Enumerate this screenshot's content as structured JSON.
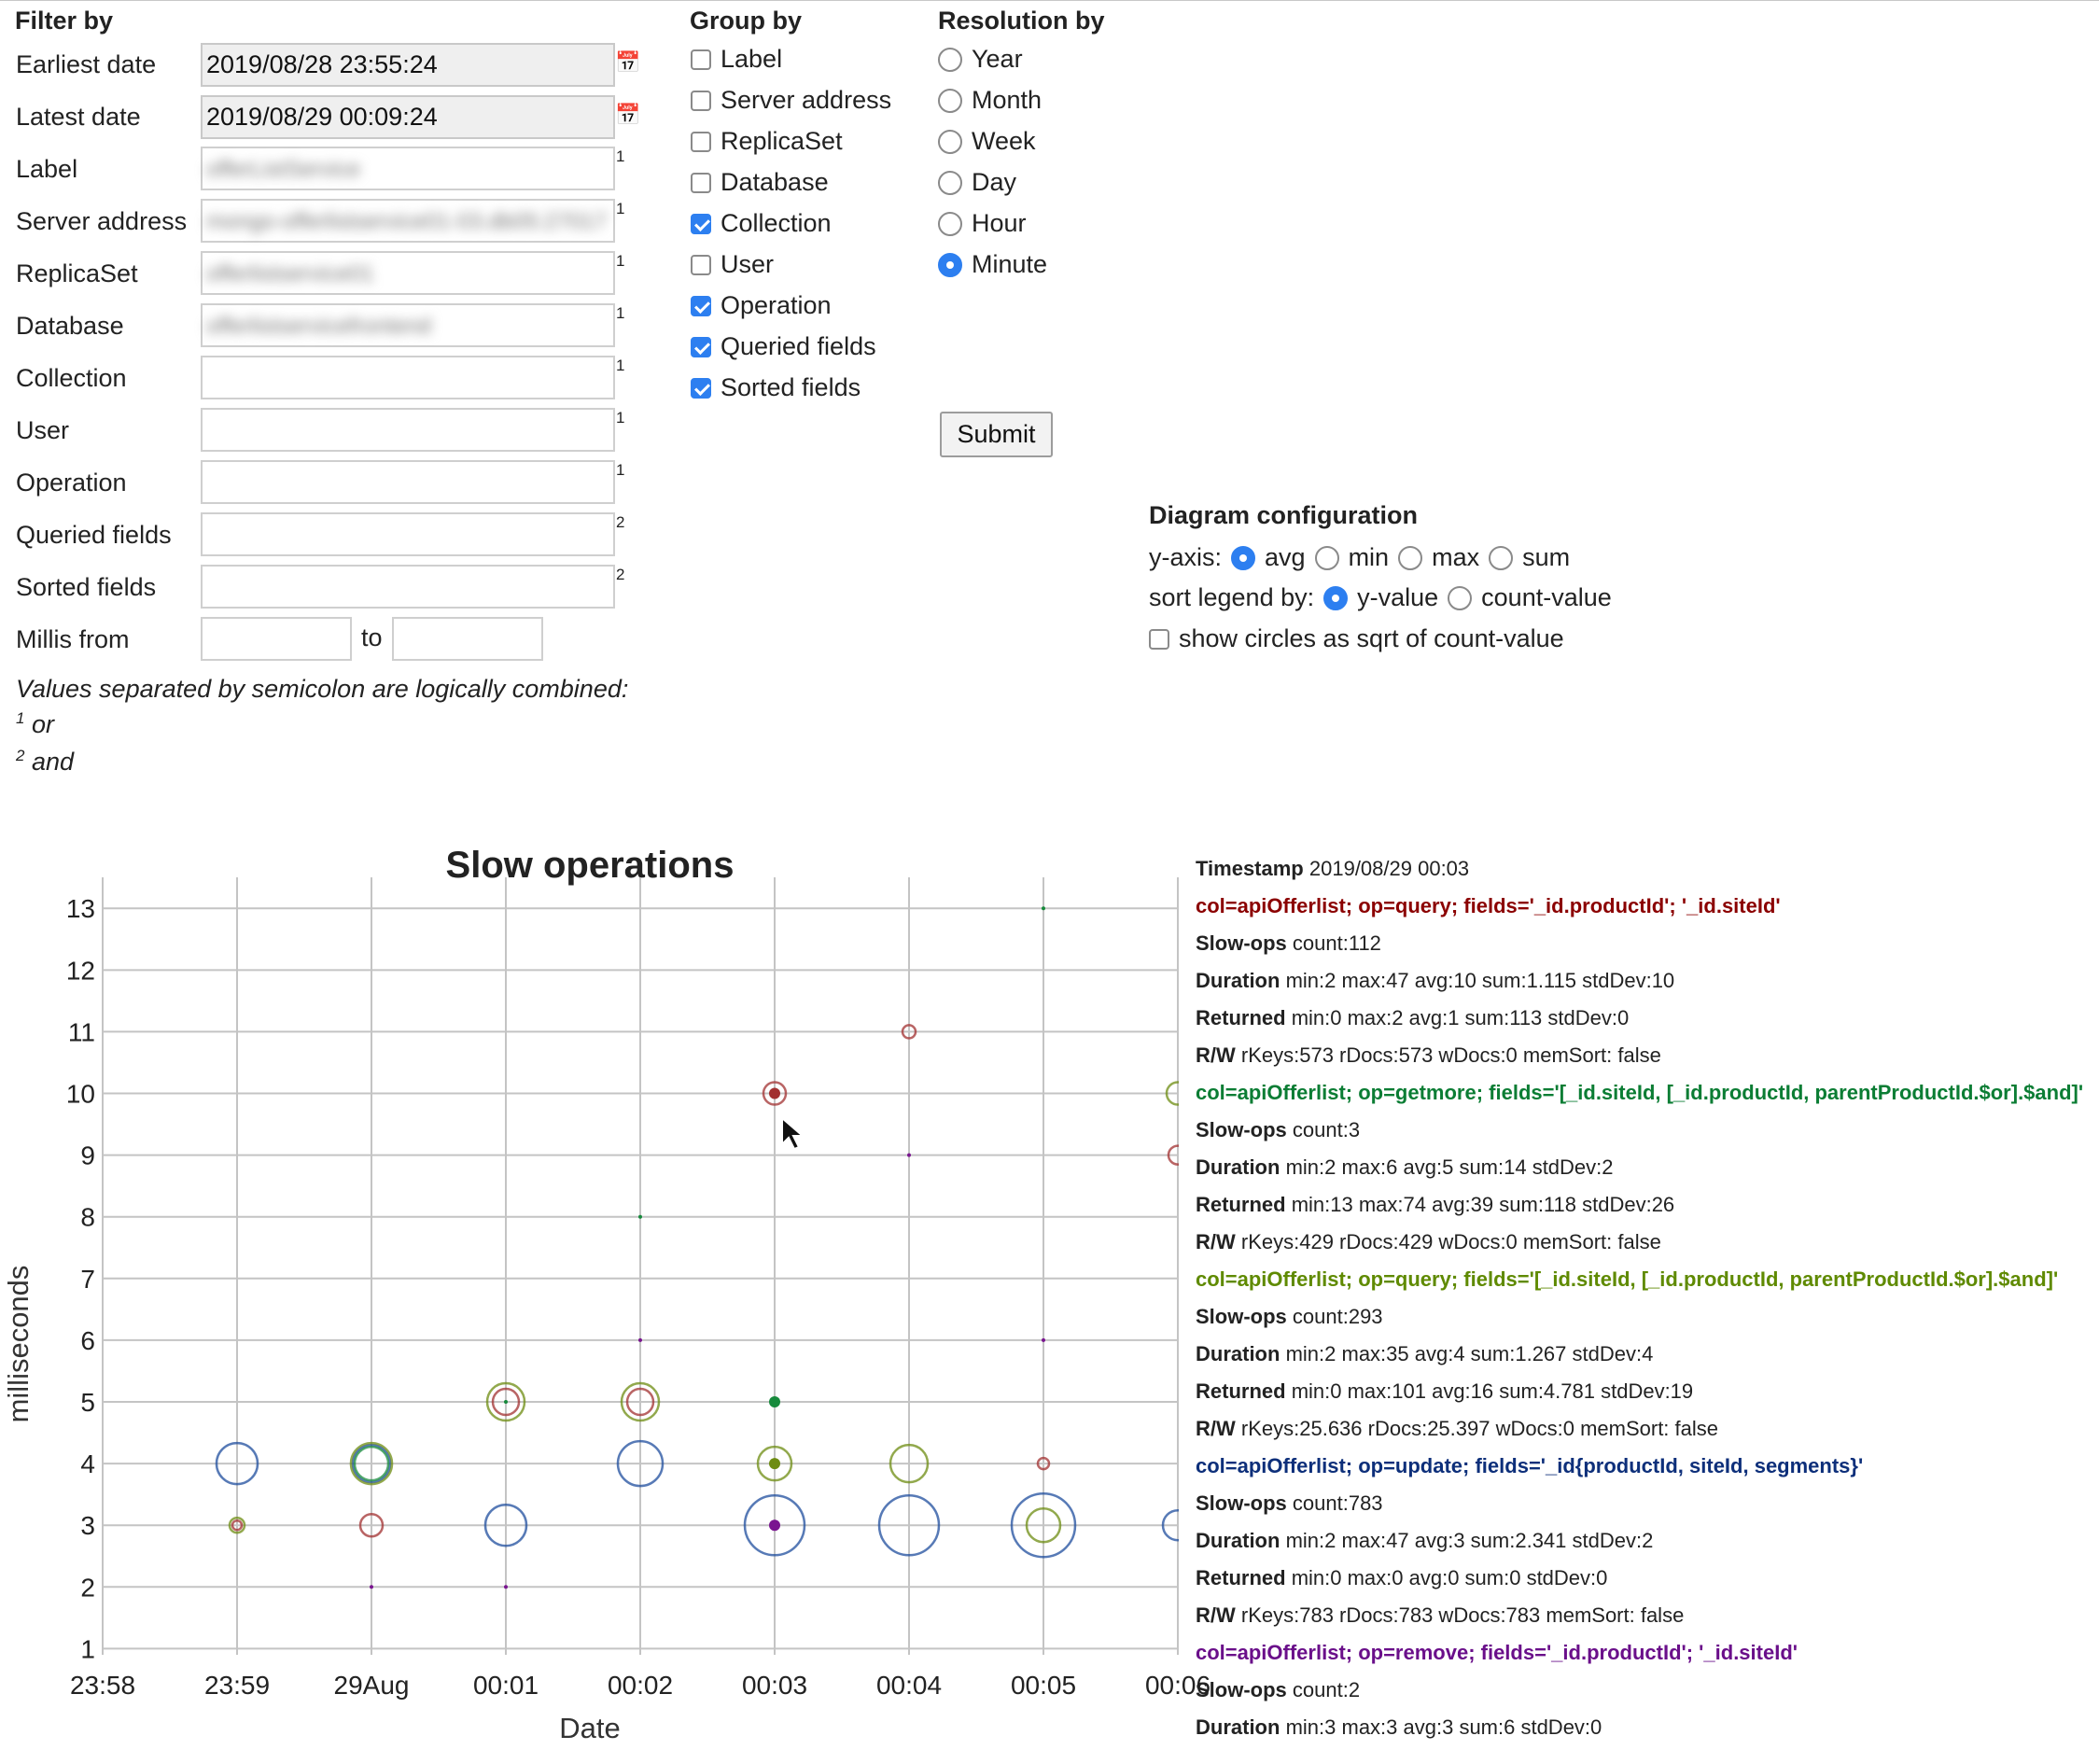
{
  "filter": {
    "title": "Filter by",
    "earliest_label": "Earliest date",
    "earliest_value": "2019/08/28 23:55:24",
    "latest_label": "Latest date",
    "latest_value": "2019/08/29 00:09:24",
    "calendar_icon": "calendar-icon",
    "fields": [
      {
        "label": "Label",
        "value": "offerListService",
        "sup": "1"
      },
      {
        "label": "Server address",
        "value": "mongo-offerlistservice01-03.db05:27017",
        "sup": "1"
      },
      {
        "label": "ReplicaSet",
        "value": "offerlistservice01",
        "sup": "1"
      },
      {
        "label": "Database",
        "value": "offerlistservicefrontend",
        "sup": "1"
      },
      {
        "label": "Collection",
        "value": "",
        "sup": "1"
      },
      {
        "label": "User",
        "value": "",
        "sup": "1"
      },
      {
        "label": "Operation",
        "value": "",
        "sup": "1"
      },
      {
        "label": "Queried fields",
        "value": "",
        "sup": "2"
      },
      {
        "label": "Sorted fields",
        "value": "",
        "sup": "2"
      }
    ],
    "millis_label": "Millis from",
    "millis_to": "to",
    "note": "Values separated by semicolon are logically combined:",
    "note_or_sup": "1",
    "note_or": "or",
    "note_and_sup": "2",
    "note_and": "and"
  },
  "group": {
    "title": "Group by",
    "items": [
      {
        "label": "Label",
        "checked": false
      },
      {
        "label": "Server address",
        "checked": false
      },
      {
        "label": "ReplicaSet",
        "checked": false
      },
      {
        "label": "Database",
        "checked": false
      },
      {
        "label": "Collection",
        "checked": true
      },
      {
        "label": "User",
        "checked": false
      },
      {
        "label": "Operation",
        "checked": true
      },
      {
        "label": "Queried fields",
        "checked": true
      },
      {
        "label": "Sorted fields",
        "checked": true
      }
    ]
  },
  "resolution": {
    "title": "Resolution by",
    "items": [
      {
        "label": "Year",
        "selected": false
      },
      {
        "label": "Month",
        "selected": false
      },
      {
        "label": "Week",
        "selected": false
      },
      {
        "label": "Day",
        "selected": false
      },
      {
        "label": "Hour",
        "selected": false
      },
      {
        "label": "Minute",
        "selected": true
      }
    ],
    "submit": "Submit"
  },
  "diagram": {
    "title": "Diagram configuration",
    "yaxis_label": "y-axis:",
    "yaxis_options": [
      "avg",
      "min",
      "max",
      "sum"
    ],
    "yaxis_selected": "avg",
    "sort_label": "sort legend by:",
    "sort_options": [
      "y-value",
      "count-value"
    ],
    "sort_selected": "y-value",
    "sqrt_label": "show circles as sqrt of count-value",
    "sqrt_checked": false
  },
  "chart_data": {
    "type": "scatter",
    "title": "Slow operations",
    "xlabel": "Date",
    "ylabel": "milliseconds",
    "x_ticks": [
      "23:58",
      "23:59",
      "29Aug",
      "00:01",
      "00:02",
      "00:03",
      "00:04",
      "00:05",
      "00:06"
    ],
    "y_ticks": [
      1,
      2,
      3,
      4,
      5,
      6,
      7,
      8,
      9,
      10,
      11,
      12,
      13
    ],
    "ylim": [
      0.9,
      13.2
    ],
    "grid": true,
    "colors": {
      "red": "#a23030",
      "green": "#178a3c",
      "olive": "#6e8c12",
      "blue": "#1f4e9e",
      "purple": "#7a1590"
    },
    "points": [
      {
        "x": "23:59",
        "y": 4,
        "color": "blue",
        "size": 22,
        "filled": false
      },
      {
        "x": "23:59",
        "y": 3,
        "color": "olive",
        "size": 8,
        "filled": false
      },
      {
        "x": "23:59",
        "y": 3,
        "color": "red",
        "size": 5,
        "filled": false
      },
      {
        "x": "29Aug",
        "y": 4,
        "color": "blue",
        "size": 20,
        "filled": false
      },
      {
        "x": "29Aug",
        "y": 4,
        "color": "olive",
        "size": 22,
        "filled": false
      },
      {
        "x": "29Aug",
        "y": 4,
        "color": "green",
        "size": 18,
        "filled": false
      },
      {
        "x": "29Aug",
        "y": 3,
        "color": "red",
        "size": 12,
        "filled": false
      },
      {
        "x": "29Aug",
        "y": 2,
        "color": "purple",
        "size": 2,
        "filled": true
      },
      {
        "x": "00:01",
        "y": 5,
        "color": "olive",
        "size": 20,
        "filled": false
      },
      {
        "x": "00:01",
        "y": 5,
        "color": "red",
        "size": 14,
        "filled": false
      },
      {
        "x": "00:01",
        "y": 5,
        "color": "green",
        "size": 2,
        "filled": true
      },
      {
        "x": "00:01",
        "y": 3,
        "color": "blue",
        "size": 22,
        "filled": false
      },
      {
        "x": "00:01",
        "y": 2,
        "color": "purple",
        "size": 2,
        "filled": true
      },
      {
        "x": "00:02",
        "y": 8,
        "color": "green",
        "size": 2,
        "filled": true
      },
      {
        "x": "00:02",
        "y": 6,
        "color": "purple",
        "size": 2,
        "filled": true
      },
      {
        "x": "00:02",
        "y": 5,
        "color": "olive",
        "size": 20,
        "filled": false
      },
      {
        "x": "00:02",
        "y": 5,
        "color": "red",
        "size": 14,
        "filled": false
      },
      {
        "x": "00:02",
        "y": 4,
        "color": "blue",
        "size": 24,
        "filled": false
      },
      {
        "x": "00:03",
        "y": 10,
        "color": "red",
        "size": 12,
        "filled": false
      },
      {
        "x": "00:03",
        "y": 10,
        "color": "red",
        "size": 6,
        "filled": true
      },
      {
        "x": "00:03",
        "y": 5,
        "color": "green",
        "size": 6,
        "filled": true
      },
      {
        "x": "00:03",
        "y": 4,
        "color": "olive",
        "size": 18,
        "filled": false
      },
      {
        "x": "00:03",
        "y": 4,
        "color": "olive",
        "size": 6,
        "filled": true
      },
      {
        "x": "00:03",
        "y": 3,
        "color": "blue",
        "size": 32,
        "filled": false
      },
      {
        "x": "00:03",
        "y": 3,
        "color": "purple",
        "size": 6,
        "filled": true
      },
      {
        "x": "00:04",
        "y": 11,
        "color": "red",
        "size": 7,
        "filled": false
      },
      {
        "x": "00:04",
        "y": 9,
        "color": "purple",
        "size": 2,
        "filled": true
      },
      {
        "x": "00:04",
        "y": 4,
        "color": "olive",
        "size": 20,
        "filled": false
      },
      {
        "x": "00:04",
        "y": 3,
        "color": "blue",
        "size": 32,
        "filled": false
      },
      {
        "x": "00:05",
        "y": 13,
        "color": "green",
        "size": 2,
        "filled": true
      },
      {
        "x": "00:05",
        "y": 6,
        "color": "purple",
        "size": 2,
        "filled": true
      },
      {
        "x": "00:05",
        "y": 4,
        "color": "red",
        "size": 6,
        "filled": false
      },
      {
        "x": "00:05",
        "y": 3,
        "color": "blue",
        "size": 34,
        "filled": false
      },
      {
        "x": "00:05",
        "y": 3,
        "color": "olive",
        "size": 18,
        "filled": false
      },
      {
        "x": "00:06",
        "y": 10,
        "color": "olive",
        "size": 12,
        "filled": false
      },
      {
        "x": "00:06",
        "y": 9,
        "color": "red",
        "size": 10,
        "filled": false
      },
      {
        "x": "00:06",
        "y": 3,
        "color": "blue",
        "size": 16,
        "filled": false
      }
    ]
  },
  "legend": {
    "timestamp_key": "Timestamp",
    "timestamp_value": "2019/08/29 00:03",
    "entries": [
      {
        "title": "col=apiOfferlist; op=query; fields='_id.productId'; '_id.siteId'",
        "color": "#8b0000",
        "lines": [
          {
            "k": "Slow-ops",
            "v": "count:112"
          },
          {
            "k": "Duration",
            "v": "min:2 max:47 avg:10 sum:1.115 stdDev:10"
          },
          {
            "k": "Returned",
            "v": "min:0 max:2 avg:1 sum:113 stdDev:0"
          },
          {
            "k": "R/W",
            "v": "rKeys:573 rDocs:573 wDocs:0 memSort: false"
          }
        ]
      },
      {
        "title": "col=apiOfferlist; op=getmore; fields='[_id.siteId, [_id.productId, parentProductId.$or].$and]'",
        "color": "#0b7d34",
        "lines": [
          {
            "k": "Slow-ops",
            "v": "count:3"
          },
          {
            "k": "Duration",
            "v": "min:2 max:6 avg:5 sum:14 stdDev:2"
          },
          {
            "k": "Returned",
            "v": "min:13 max:74 avg:39 sum:118 stdDev:26"
          },
          {
            "k": "R/W",
            "v": "rKeys:429 rDocs:429 wDocs:0 memSort: false"
          }
        ]
      },
      {
        "title": "col=apiOfferlist; op=query; fields='[_id.siteId, [_id.productId, parentProductId.$or].$and]'",
        "color": "#5f8a00",
        "lines": [
          {
            "k": "Slow-ops",
            "v": "count:293"
          },
          {
            "k": "Duration",
            "v": "min:2 max:35 avg:4 sum:1.267 stdDev:4"
          },
          {
            "k": "Returned",
            "v": "min:0 max:101 avg:16 sum:4.781 stdDev:19"
          },
          {
            "k": "R/W",
            "v": "rKeys:25.636 rDocs:25.397 wDocs:0 memSort: false"
          }
        ]
      },
      {
        "title": "col=apiOfferlist; op=update; fields='_id{productId, siteId, segments}'",
        "color": "#0d2f7a",
        "lines": [
          {
            "k": "Slow-ops",
            "v": "count:783"
          },
          {
            "k": "Duration",
            "v": "min:2 max:47 avg:3 sum:2.341 stdDev:2"
          },
          {
            "k": "Returned",
            "v": "min:0 max:0 avg:0 sum:0 stdDev:0"
          },
          {
            "k": "R/W",
            "v": "rKeys:783 rDocs:783 wDocs:783 memSort: false"
          }
        ]
      },
      {
        "title": "col=apiOfferlist; op=remove; fields='_id.productId'; '_id.siteId'",
        "color": "#6a0f8a",
        "lines": [
          {
            "k": "Slow-ops",
            "v": "count:2"
          },
          {
            "k": "Duration",
            "v": "min:3 max:3 avg:3 sum:6 stdDev:0"
          }
        ]
      }
    ]
  }
}
